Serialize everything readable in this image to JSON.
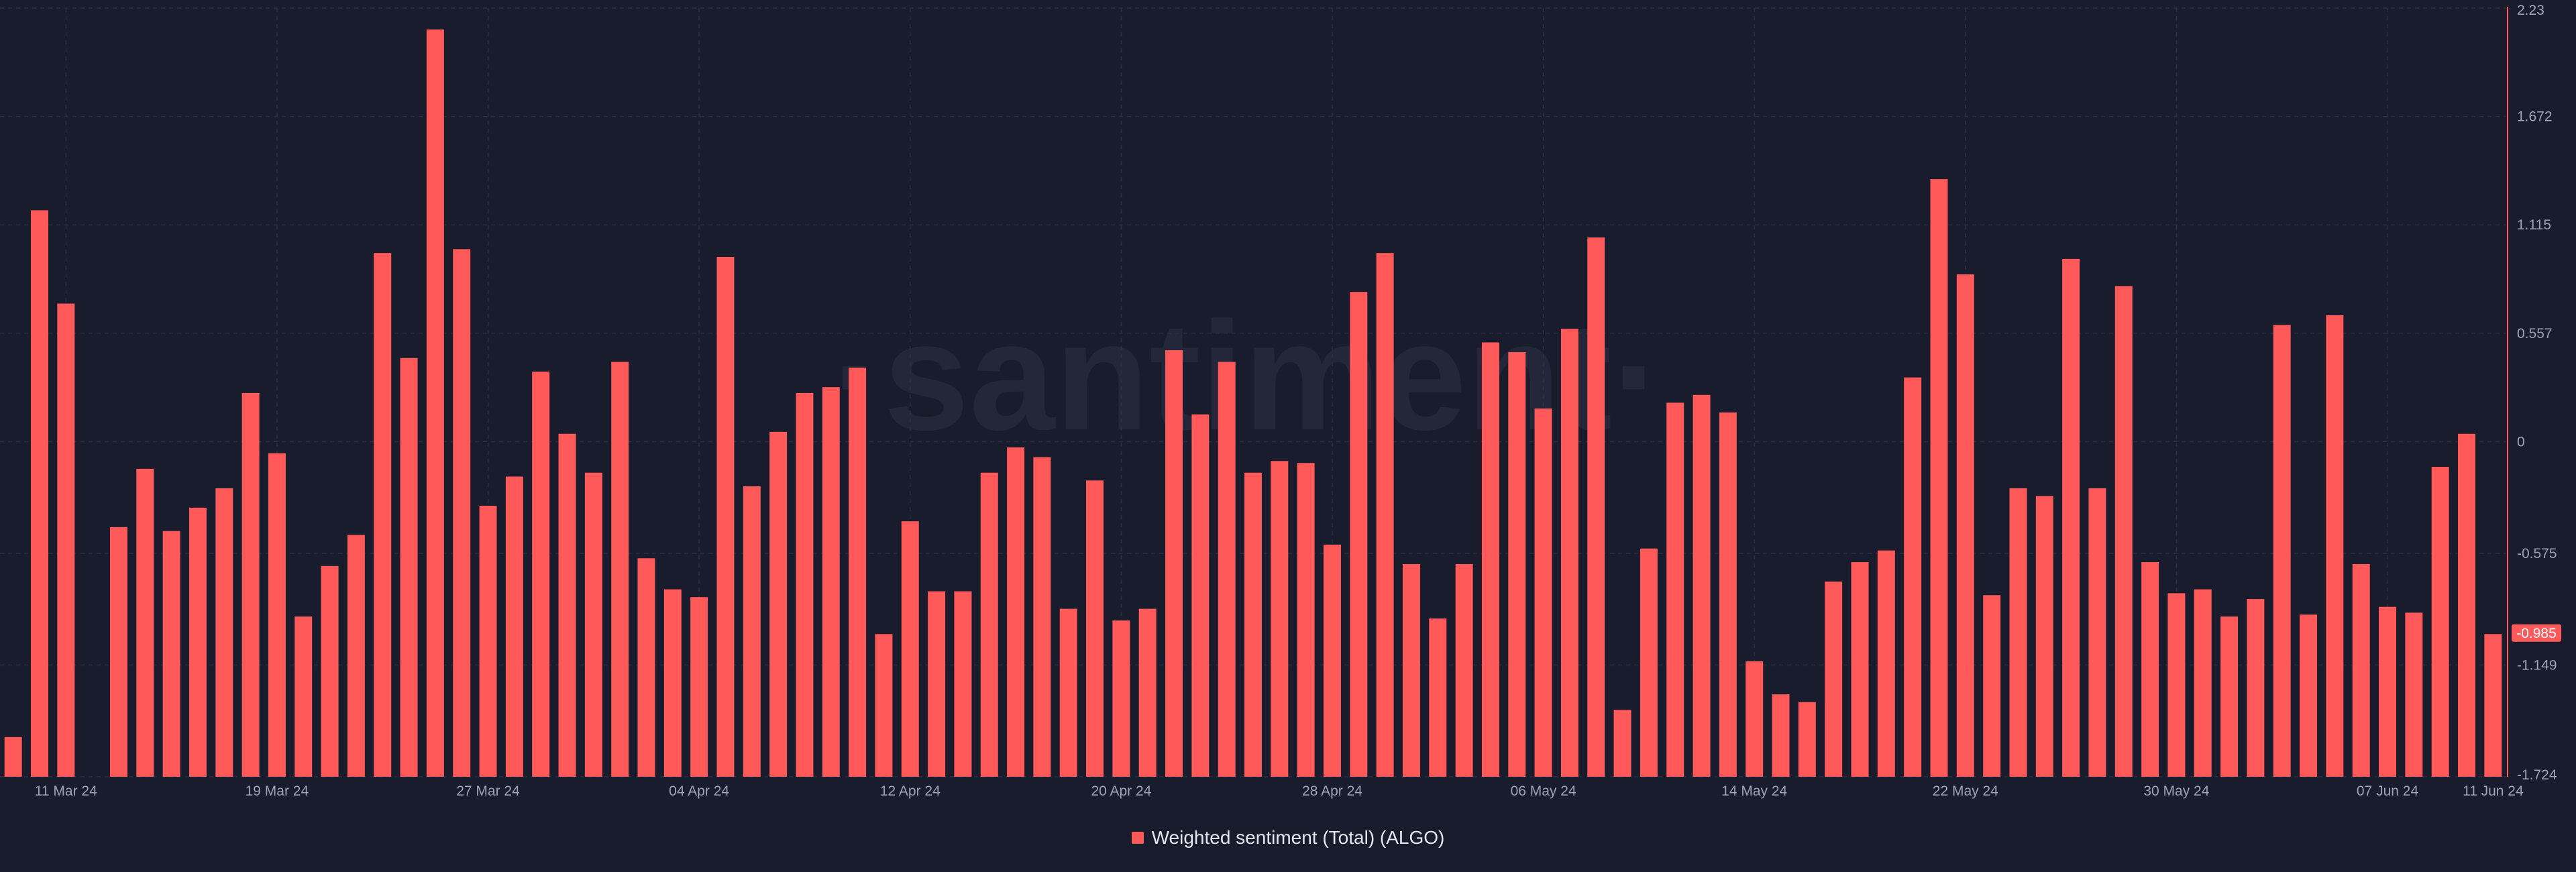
{
  "watermark": "·santiment·",
  "colors": {
    "background": "#191c2c",
    "bar": "#ff5959",
    "grid": "#2c3044",
    "axis_line": "#ff5959",
    "tick_text": "#9ea3b4",
    "current_badge_bg": "#ff5959",
    "current_badge_text": "#ffffff"
  },
  "legend": {
    "label": "Weighted sentiment (Total) (ALGO)",
    "color": "#ff5959",
    "placement": "bottom-center"
  },
  "chart_data": {
    "type": "bar",
    "title": "",
    "xlabel": "",
    "ylabel": "",
    "grid": true,
    "y_axis_side": "right",
    "ylim": [
      -1.724,
      2.23
    ],
    "y_ticks": [
      2.23,
      1.672,
      1.115,
      0.557,
      0,
      -0.575,
      -1.149,
      -1.724
    ],
    "y_tick_labels": [
      "2.23",
      "1.672",
      "1.115",
      "0.557",
      "0",
      "-0.575",
      "-1.149",
      "-1.724"
    ],
    "current_value": -0.985,
    "current_value_label": "-0.985",
    "x_ticks": [
      {
        "date": "2024-03-11",
        "label": "11 Mar 24"
      },
      {
        "date": "2024-03-19",
        "label": "19 Mar 24"
      },
      {
        "date": "2024-03-27",
        "label": "27 Mar 24"
      },
      {
        "date": "2024-04-04",
        "label": "04 Apr 24"
      },
      {
        "date": "2024-04-12",
        "label": "12 Apr 24"
      },
      {
        "date": "2024-04-20",
        "label": "20 Apr 24"
      },
      {
        "date": "2024-04-28",
        "label": "28 Apr 24"
      },
      {
        "date": "2024-05-06",
        "label": "06 May 24"
      },
      {
        "date": "2024-05-14",
        "label": "14 May 24"
      },
      {
        "date": "2024-05-22",
        "label": "22 May 24"
      },
      {
        "date": "2024-05-30",
        "label": "30 May 24"
      },
      {
        "date": "2024-06-07",
        "label": "07 Jun 24"
      },
      {
        "date": "2024-06-11",
        "label": "11 Jun 24"
      }
    ],
    "series": [
      {
        "name": "Weighted sentiment (Total) (ALGO)",
        "points": [
          {
            "date": "2024-03-09",
            "value": -1.52
          },
          {
            "date": "2024-03-10",
            "value": 1.19
          },
          {
            "date": "2024-03-11",
            "value": 0.71
          },
          {
            "date": "2024-03-12",
            "value": null
          },
          {
            "date": "2024-03-13",
            "value": -0.44
          },
          {
            "date": "2024-03-14",
            "value": -0.14
          },
          {
            "date": "2024-03-15",
            "value": -0.46
          },
          {
            "date": "2024-03-16",
            "value": -0.34
          },
          {
            "date": "2024-03-17",
            "value": -0.24
          },
          {
            "date": "2024-03-18",
            "value": 0.25
          },
          {
            "date": "2024-03-19",
            "value": -0.06
          },
          {
            "date": "2024-03-20",
            "value": -0.9
          },
          {
            "date": "2024-03-21",
            "value": -0.64
          },
          {
            "date": "2024-03-22",
            "value": -0.48
          },
          {
            "date": "2024-03-23",
            "value": 0.97
          },
          {
            "date": "2024-03-24",
            "value": 0.43
          },
          {
            "date": "2024-03-25",
            "value": 2.12
          },
          {
            "date": "2024-03-26",
            "value": 0.99
          },
          {
            "date": "2024-03-27",
            "value": -0.33
          },
          {
            "date": "2024-03-28",
            "value": -0.18
          },
          {
            "date": "2024-03-29",
            "value": 0.36
          },
          {
            "date": "2024-03-30",
            "value": 0.04
          },
          {
            "date": "2024-03-31",
            "value": -0.16
          },
          {
            "date": "2024-04-01",
            "value": 0.41
          },
          {
            "date": "2024-04-02",
            "value": -0.6
          },
          {
            "date": "2024-04-03",
            "value": -0.76
          },
          {
            "date": "2024-04-04",
            "value": -0.8
          },
          {
            "date": "2024-04-05",
            "value": 0.95
          },
          {
            "date": "2024-04-06",
            "value": -0.23
          },
          {
            "date": "2024-04-07",
            "value": 0.05
          },
          {
            "date": "2024-04-08",
            "value": 0.25
          },
          {
            "date": "2024-04-09",
            "value": 0.28
          },
          {
            "date": "2024-04-10",
            "value": 0.38
          },
          {
            "date": "2024-04-11",
            "value": -0.99
          },
          {
            "date": "2024-04-12",
            "value": -0.41
          },
          {
            "date": "2024-04-13",
            "value": -0.77
          },
          {
            "date": "2024-04-14",
            "value": -0.77
          },
          {
            "date": "2024-04-15",
            "value": -0.16
          },
          {
            "date": "2024-04-16",
            "value": -0.03
          },
          {
            "date": "2024-04-17",
            "value": -0.08
          },
          {
            "date": "2024-04-18",
            "value": -0.86
          },
          {
            "date": "2024-04-19",
            "value": -0.2
          },
          {
            "date": "2024-04-20",
            "value": -0.92
          },
          {
            "date": "2024-04-21",
            "value": -0.86
          },
          {
            "date": "2024-04-22",
            "value": 0.47
          },
          {
            "date": "2024-04-23",
            "value": 0.14
          },
          {
            "date": "2024-04-24",
            "value": 0.41
          },
          {
            "date": "2024-04-25",
            "value": -0.16
          },
          {
            "date": "2024-04-26",
            "value": -0.1
          },
          {
            "date": "2024-04-27",
            "value": -0.11
          },
          {
            "date": "2024-04-28",
            "value": -0.53
          },
          {
            "date": "2024-04-29",
            "value": 0.77
          },
          {
            "date": "2024-04-30",
            "value": 0.97
          },
          {
            "date": "2024-05-01",
            "value": -0.63
          },
          {
            "date": "2024-05-02",
            "value": -0.91
          },
          {
            "date": "2024-05-03",
            "value": -0.63
          },
          {
            "date": "2024-05-04",
            "value": 0.51
          },
          {
            "date": "2024-05-05",
            "value": 0.46
          },
          {
            "date": "2024-05-06",
            "value": 0.17
          },
          {
            "date": "2024-05-07",
            "value": 0.58
          },
          {
            "date": "2024-05-08",
            "value": 1.05
          },
          {
            "date": "2024-05-09",
            "value": -1.38
          },
          {
            "date": "2024-05-10",
            "value": -0.55
          },
          {
            "date": "2024-05-11",
            "value": 0.2
          },
          {
            "date": "2024-05-12",
            "value": 0.24
          },
          {
            "date": "2024-05-13",
            "value": 0.15
          },
          {
            "date": "2024-05-14",
            "value": -1.13
          },
          {
            "date": "2024-05-15",
            "value": -1.3
          },
          {
            "date": "2024-05-16",
            "value": -1.34
          },
          {
            "date": "2024-05-17",
            "value": -0.72
          },
          {
            "date": "2024-05-18",
            "value": -0.62
          },
          {
            "date": "2024-05-19",
            "value": -0.56
          },
          {
            "date": "2024-05-20",
            "value": 0.33
          },
          {
            "date": "2024-05-21",
            "value": 1.35
          },
          {
            "date": "2024-05-22",
            "value": 0.86
          },
          {
            "date": "2024-05-23",
            "value": -0.79
          },
          {
            "date": "2024-05-24",
            "value": -0.24
          },
          {
            "date": "2024-05-25",
            "value": -0.28
          },
          {
            "date": "2024-05-26",
            "value": 0.94
          },
          {
            "date": "2024-05-27",
            "value": -0.24
          },
          {
            "date": "2024-05-28",
            "value": 0.8
          },
          {
            "date": "2024-05-29",
            "value": -0.62
          },
          {
            "date": "2024-05-30",
            "value": -0.78
          },
          {
            "date": "2024-05-31",
            "value": -0.76
          },
          {
            "date": "2024-06-01",
            "value": -0.9
          },
          {
            "date": "2024-06-02",
            "value": -0.81
          },
          {
            "date": "2024-06-03",
            "value": 0.6
          },
          {
            "date": "2024-06-04",
            "value": -0.89
          },
          {
            "date": "2024-06-05",
            "value": 0.65
          },
          {
            "date": "2024-06-06",
            "value": -0.63
          },
          {
            "date": "2024-06-07",
            "value": -0.85
          },
          {
            "date": "2024-06-08",
            "value": -0.88
          },
          {
            "date": "2024-06-09",
            "value": -0.13
          },
          {
            "date": "2024-06-10",
            "value": 0.04
          },
          {
            "date": "2024-06-11",
            "value": -0.99
          }
        ]
      }
    ]
  }
}
